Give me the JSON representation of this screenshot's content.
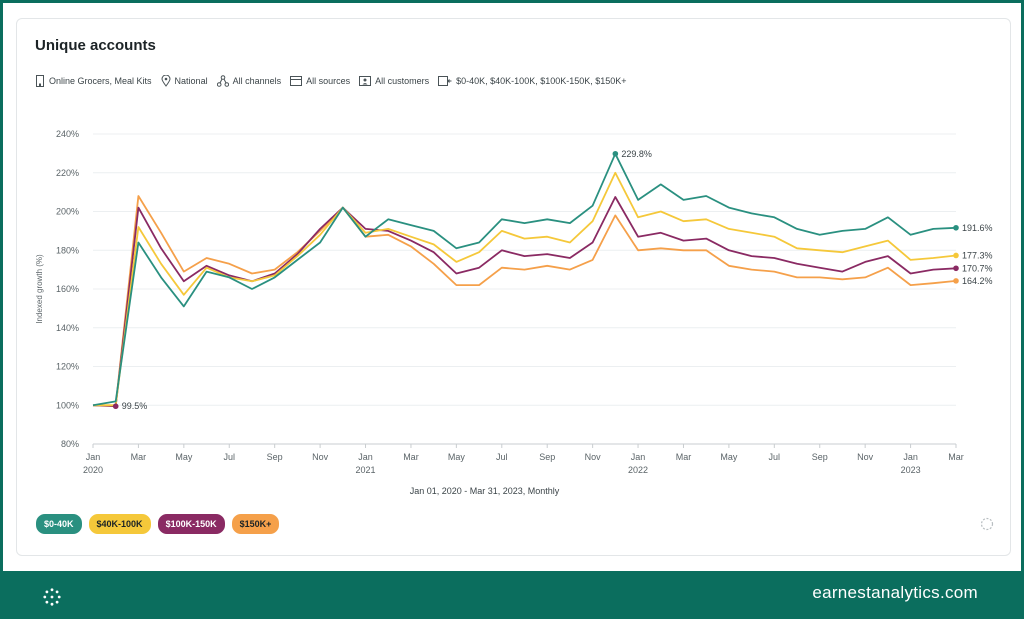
{
  "chart_title": "Unique accounts",
  "filters": [
    {
      "icon": "building-icon",
      "label": "Online Grocers, Meal Kits"
    },
    {
      "icon": "location-pin-icon",
      "label": "National"
    },
    {
      "icon": "channels-icon",
      "label": "All channels"
    },
    {
      "icon": "card-icon",
      "label": "All sources"
    },
    {
      "icon": "customer-icon",
      "label": "All customers"
    },
    {
      "icon": "income-icon",
      "label": "$0-40K, $40K-100K, $100K-150K, $150K+"
    }
  ],
  "brand": "earnestanalytics.com",
  "colors": {
    "teal": "#2a9080",
    "yellow": "#f5c83a",
    "purple": "#8a2a63",
    "orange": "#f5a04a"
  },
  "chart_data": {
    "type": "line",
    "title": "Unique accounts",
    "xlabel": "Jan 01, 2020 - Mar 31, 2023, Monthly",
    "ylabel": "Indexed growth (%)",
    "ylim": [
      80,
      240
    ],
    "yticks": [
      80,
      100,
      120,
      140,
      160,
      180,
      200,
      220,
      240
    ],
    "grid": true,
    "x": [
      "2020-01",
      "2020-02",
      "2020-03",
      "2020-04",
      "2020-05",
      "2020-06",
      "2020-07",
      "2020-08",
      "2020-09",
      "2020-10",
      "2020-11",
      "2020-12",
      "2021-01",
      "2021-02",
      "2021-03",
      "2021-04",
      "2021-05",
      "2021-06",
      "2021-07",
      "2021-08",
      "2021-09",
      "2021-10",
      "2021-11",
      "2021-12",
      "2022-01",
      "2022-02",
      "2022-03",
      "2022-04",
      "2022-05",
      "2022-06",
      "2022-07",
      "2022-08",
      "2022-09",
      "2022-10",
      "2022-11",
      "2022-12",
      "2023-01",
      "2023-02",
      "2023-03"
    ],
    "xtick_labels": [
      {
        "i": 0,
        "label": "Jan",
        "year": "2020"
      },
      {
        "i": 2,
        "label": "Mar"
      },
      {
        "i": 4,
        "label": "May"
      },
      {
        "i": 6,
        "label": "Jul"
      },
      {
        "i": 8,
        "label": "Sep"
      },
      {
        "i": 10,
        "label": "Nov"
      },
      {
        "i": 12,
        "label": "Jan",
        "year": "2021"
      },
      {
        "i": 14,
        "label": "Mar"
      },
      {
        "i": 16,
        "label": "May"
      },
      {
        "i": 18,
        "label": "Jul"
      },
      {
        "i": 20,
        "label": "Sep"
      },
      {
        "i": 22,
        "label": "Nov"
      },
      {
        "i": 24,
        "label": "Jan",
        "year": "2022"
      },
      {
        "i": 26,
        "label": "Mar"
      },
      {
        "i": 28,
        "label": "May"
      },
      {
        "i": 30,
        "label": "Jul"
      },
      {
        "i": 32,
        "label": "Sep"
      },
      {
        "i": 34,
        "label": "Nov"
      },
      {
        "i": 36,
        "label": "Jan",
        "year": "2023"
      },
      {
        "i": 38,
        "label": "Mar"
      }
    ],
    "series": [
      {
        "name": "$0-40K",
        "color": "#2a9080",
        "text_color": "#ffffff",
        "values": [
          100,
          102,
          184,
          166,
          151,
          169,
          166,
          160,
          166,
          175,
          184,
          202,
          187,
          196,
          193,
          190,
          181,
          184,
          196,
          194,
          196,
          194,
          203,
          229.8,
          206,
          214,
          206,
          208,
          202,
          199,
          197,
          191,
          188,
          190,
          191,
          197,
          188,
          191,
          191.6
        ],
        "annotations": [
          {
            "i": 23,
            "label": "229.8%"
          },
          {
            "i": 38,
            "label": "191.6%"
          }
        ]
      },
      {
        "name": "$40K-100K",
        "color": "#f5c83a",
        "text_color": "#1c2326",
        "values": [
          100,
          100,
          192,
          173,
          157,
          171,
          166,
          164,
          167,
          177,
          188,
          202,
          189,
          191,
          187,
          183,
          174,
          179,
          190,
          186,
          187,
          184,
          195,
          220,
          197,
          200,
          195,
          196,
          191,
          189,
          187,
          181,
          180,
          179,
          182,
          185,
          175,
          176,
          177.3
        ],
        "annotations": [
          {
            "i": 38,
            "label": "177.3%"
          }
        ]
      },
      {
        "name": "$100K-150K",
        "color": "#8a2a63",
        "text_color": "#ffffff",
        "values": [
          100,
          99.5,
          202,
          181,
          164,
          172,
          167,
          164,
          168,
          178,
          191,
          202,
          191,
          190,
          185,
          179,
          168,
          171,
          180,
          177,
          178,
          176,
          184,
          207.5,
          187,
          189,
          185,
          186,
          180,
          177,
          176,
          173,
          171,
          169,
          174,
          177,
          168,
          170,
          170.7
        ],
        "annotations": [
          {
            "i": 1,
            "label": "99.5%"
          },
          {
            "i": 38,
            "label": "170.7%"
          }
        ]
      },
      {
        "name": "$150K+",
        "color": "#f5a04a",
        "text_color": "#1c2326",
        "values": [
          100,
          100,
          208,
          189,
          169,
          176,
          173,
          168,
          170,
          179,
          190,
          202,
          187,
          188,
          182,
          173,
          162,
          162,
          171,
          170,
          172,
          170,
          175,
          198,
          180,
          181,
          180,
          180,
          172,
          170,
          169,
          166,
          166,
          165,
          166,
          171,
          162,
          163,
          164.2
        ],
        "annotations": [
          {
            "i": 38,
            "label": "164.2%"
          }
        ]
      }
    ]
  }
}
